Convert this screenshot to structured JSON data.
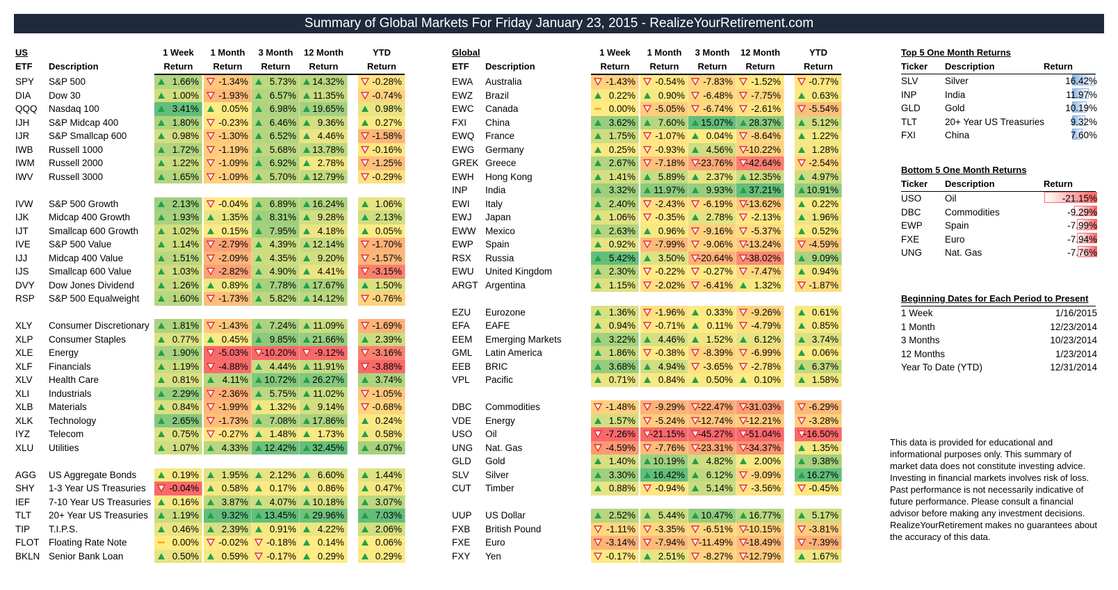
{
  "title": "Summary of Global Markets For Friday January 23, 2015 - RealizeYourRetirement.com",
  "left_table": {
    "region_label": "US",
    "headers": {
      "etf": "ETF",
      "description": "Description",
      "p1_top": "1 Week",
      "p2_top": "1 Month",
      "p3_top": "3 Month",
      "p4_top": "12 Month",
      "p5_top": "YTD",
      "ret": "Return"
    },
    "groups": [
      [
        {
          "etf": "SPY",
          "desc": "S&P 500",
          "values": [
            "1.66%",
            "-1.34%",
            "5.73%",
            "14.32%",
            "-0.28%"
          ]
        },
        {
          "etf": "DIA",
          "desc": "Dow 30",
          "values": [
            "1.00%",
            "-1.93%",
            "6.57%",
            "11.35%",
            "-0.74%"
          ]
        },
        {
          "etf": "QQQ",
          "desc": "Nasdaq 100",
          "values": [
            "3.41%",
            "0.05%",
            "6.98%",
            "19.65%",
            "0.98%"
          ]
        },
        {
          "etf": "IJH",
          "desc": "S&P Midcap 400",
          "values": [
            "1.80%",
            "-0.23%",
            "6.46%",
            "9.36%",
            "0.27%"
          ]
        },
        {
          "etf": "IJR",
          "desc": "S&P Smallcap 600",
          "values": [
            "0.98%",
            "-1.30%",
            "6.52%",
            "4.46%",
            "-1.58%"
          ]
        },
        {
          "etf": "IWB",
          "desc": "Russell 1000",
          "values": [
            "1.72%",
            "-1.19%",
            "5.68%",
            "13.78%",
            "-0.16%"
          ]
        },
        {
          "etf": "IWM",
          "desc": "Russell 2000",
          "values": [
            "1.22%",
            "-1.09%",
            "6.92%",
            "2.78%",
            "-1.25%"
          ]
        },
        {
          "etf": "IWV",
          "desc": "Russell 3000",
          "values": [
            "1.65%",
            "-1.09%",
            "5.70%",
            "12.79%",
            "-0.29%"
          ]
        }
      ],
      [
        {
          "etf": "IVW",
          "desc": "S&P 500 Growth",
          "values": [
            "2.13%",
            "-0.04%",
            "6.89%",
            "16.24%",
            "1.06%"
          ]
        },
        {
          "etf": "IJK",
          "desc": "Midcap 400 Growth",
          "values": [
            "1.93%",
            "1.35%",
            "8.31%",
            "9.28%",
            "2.13%"
          ]
        },
        {
          "etf": "IJT",
          "desc": "Smallcap 600 Growth",
          "values": [
            "1.02%",
            "0.15%",
            "7.95%",
            "4.18%",
            "0.05%"
          ]
        },
        {
          "etf": "IVE",
          "desc": "S&P 500 Value",
          "values": [
            "1.14%",
            "-2.79%",
            "4.39%",
            "12.14%",
            "-1.70%"
          ]
        },
        {
          "etf": "IJJ",
          "desc": "Midcap 400 Value",
          "values": [
            "1.51%",
            "-2.09%",
            "4.35%",
            "9.20%",
            "-1.57%"
          ]
        },
        {
          "etf": "IJS",
          "desc": "Smallcap 600 Value",
          "values": [
            "1.03%",
            "-2.82%",
            "4.90%",
            "4.41%",
            "-3.15%"
          ]
        },
        {
          "etf": "DVY",
          "desc": "Dow Jones Dividend",
          "values": [
            "1.26%",
            "0.89%",
            "7.78%",
            "17.67%",
            "1.50%"
          ]
        },
        {
          "etf": "RSP",
          "desc": "S&P 500 Equalweight",
          "values": [
            "1.60%",
            "-1.73%",
            "5.82%",
            "14.12%",
            "-0.76%"
          ]
        }
      ],
      [
        {
          "etf": "XLY",
          "desc": "Consumer Discretionary",
          "values": [
            "1.81%",
            "-1.43%",
            "7.24%",
            "11.09%",
            "-1.69%"
          ]
        },
        {
          "etf": "XLP",
          "desc": "Consumer Staples",
          "values": [
            "0.77%",
            "0.45%",
            "9.85%",
            "21.66%",
            "2.39%"
          ]
        },
        {
          "etf": "XLE",
          "desc": "Energy",
          "values": [
            "1.90%",
            "-5.03%",
            "-10.20%",
            "-9.12%",
            "-3.16%"
          ]
        },
        {
          "etf": "XLF",
          "desc": "Financials",
          "values": [
            "1.19%",
            "-4.88%",
            "4.44%",
            "11.91%",
            "-3.88%"
          ]
        },
        {
          "etf": "XLV",
          "desc": "Health Care",
          "values": [
            "0.81%",
            "4.11%",
            "10.72%",
            "26.27%",
            "3.74%"
          ]
        },
        {
          "etf": "XLI",
          "desc": "Industrials",
          "values": [
            "2.29%",
            "-2.36%",
            "5.75%",
            "11.02%",
            "-1.05%"
          ]
        },
        {
          "etf": "XLB",
          "desc": "Materials",
          "values": [
            "0.84%",
            "-1.99%",
            "1.32%",
            "9.14%",
            "-0.68%"
          ]
        },
        {
          "etf": "XLK",
          "desc": "Technology",
          "values": [
            "2.65%",
            "-1.73%",
            "7.08%",
            "17.86%",
            "0.24%"
          ]
        },
        {
          "etf": "IYZ",
          "desc": "Telecom",
          "values": [
            "0.75%",
            "-0.27%",
            "1.48%",
            "1.73%",
            "0.58%"
          ]
        },
        {
          "etf": "XLU",
          "desc": "Utilities",
          "values": [
            "1.07%",
            "4.33%",
            "12.42%",
            "32.45%",
            "4.07%"
          ]
        }
      ],
      [
        {
          "etf": "AGG",
          "desc": "US Aggregate Bonds",
          "values": [
            "0.19%",
            "1.95%",
            "2.12%",
            "6.60%",
            "1.44%"
          ]
        },
        {
          "etf": "SHY",
          "desc": "1-3 Year US Treasuries",
          "values": [
            "-0.04%",
            "0.58%",
            "0.17%",
            "0.86%",
            "0.47%"
          ]
        },
        {
          "etf": "IEF",
          "desc": "7-10 Year US Treasuries",
          "values": [
            "0.16%",
            "3.87%",
            "4.07%",
            "10.18%",
            "3.07%"
          ]
        },
        {
          "etf": "TLT",
          "desc": "20+ Year US Treasuries",
          "values": [
            "1.19%",
            "9.32%",
            "13.45%",
            "29.96%",
            "7.03%"
          ]
        },
        {
          "etf": "TIP",
          "desc": "T.I.P.S.",
          "values": [
            "0.46%",
            "2.39%",
            "0.91%",
            "4.22%",
            "2.06%"
          ]
        },
        {
          "etf": "FLOT",
          "desc": "Floating Rate Note",
          "values": [
            "0.00%",
            "-0.02%",
            "-0.18%",
            "0.14%",
            "0.06%"
          ]
        },
        {
          "etf": "BKLN",
          "desc": "Senior Bank Loan",
          "values": [
            "0.50%",
            "0.59%",
            "-0.17%",
            "0.29%",
            "0.29%"
          ]
        }
      ]
    ]
  },
  "right_table": {
    "region_label": "Global",
    "headers": {
      "etf": "ETF",
      "description": "Description",
      "p1_top": "1 Week",
      "p2_top": "1 Month",
      "p3_top": "3 Month",
      "p4_top": "12 Month",
      "p5_top": "YTD",
      "ret": "Return"
    },
    "groups": [
      [
        {
          "etf": "EWA",
          "desc": "Australia",
          "values": [
            "-1.43%",
            "-0.54%",
            "-7.83%",
            "-1.52%",
            "-0.77%"
          ]
        },
        {
          "etf": "EWZ",
          "desc": "Brazil",
          "values": [
            "0.22%",
            "0.90%",
            "-6.48%",
            "-7.75%",
            "0.63%"
          ]
        },
        {
          "etf": "EWC",
          "desc": "Canada",
          "values": [
            "0.00%",
            "-5.05%",
            "-6.74%",
            "-2.61%",
            "-5.54%"
          ]
        },
        {
          "etf": "FXI",
          "desc": "China",
          "values": [
            "3.62%",
            "7.60%",
            "15.07%",
            "28.37%",
            "5.12%"
          ]
        },
        {
          "etf": "EWQ",
          "desc": "France",
          "values": [
            "1.75%",
            "-1.07%",
            "0.04%",
            "-8.64%",
            "1.22%"
          ]
        },
        {
          "etf": "EWG",
          "desc": "Germany",
          "values": [
            "0.25%",
            "-0.93%",
            "4.56%",
            "-10.22%",
            "1.28%"
          ]
        },
        {
          "etf": "GREK",
          "desc": "Greece",
          "values": [
            "2.67%",
            "-7.18%",
            "-23.76%",
            "-42.64%",
            "-2.54%"
          ]
        },
        {
          "etf": "EWH",
          "desc": "Hong Kong",
          "values": [
            "1.41%",
            "5.89%",
            "2.37%",
            "12.35%",
            "4.97%"
          ]
        },
        {
          "etf": "INP",
          "desc": "India",
          "values": [
            "3.32%",
            "11.97%",
            "9.93%",
            "37.21%",
            "10.91%"
          ]
        },
        {
          "etf": "EWI",
          "desc": "Italy",
          "values": [
            "2.40%",
            "-2.43%",
            "-6.19%",
            "-13.62%",
            "0.22%"
          ]
        },
        {
          "etf": "EWJ",
          "desc": "Japan",
          "values": [
            "1.06%",
            "-0.35%",
            "2.78%",
            "-2.13%",
            "1.96%"
          ]
        },
        {
          "etf": "EWW",
          "desc": "Mexico",
          "values": [
            "2.63%",
            "0.96%",
            "-9.16%",
            "-5.37%",
            "0.52%"
          ]
        },
        {
          "etf": "EWP",
          "desc": "Spain",
          "values": [
            "0.92%",
            "-7.99%",
            "-9.06%",
            "-13.24%",
            "-4.59%"
          ]
        },
        {
          "etf": "RSX",
          "desc": "Russia",
          "values": [
            "5.42%",
            "3.50%",
            "-20.64%",
            "-38.02%",
            "9.09%"
          ]
        },
        {
          "etf": "EWU",
          "desc": "United Kingdom",
          "values": [
            "2.30%",
            "-0.22%",
            "-0.27%",
            "-7.47%",
            "0.94%"
          ]
        },
        {
          "etf": "ARGT",
          "desc": "Argentina",
          "values": [
            "1.15%",
            "-2.02%",
            "-6.41%",
            "1.32%",
            "-1.87%"
          ]
        }
      ],
      [
        {
          "etf": "EZU",
          "desc": "Eurozone",
          "values": [
            "1.36%",
            "-1.96%",
            "0.33%",
            "-9.26%",
            "0.61%"
          ]
        },
        {
          "etf": "EFA",
          "desc": "EAFE",
          "values": [
            "0.94%",
            "-0.71%",
            "0.11%",
            "-4.79%",
            "0.85%"
          ]
        },
        {
          "etf": "EEM",
          "desc": "Emerging Markets",
          "values": [
            "3.22%",
            "4.46%",
            "1.52%",
            "6.12%",
            "3.74%"
          ]
        },
        {
          "etf": "GML",
          "desc": "Latin America",
          "values": [
            "1.86%",
            "-0.38%",
            "-8.39%",
            "-6.99%",
            "0.06%"
          ]
        },
        {
          "etf": "EEB",
          "desc": "BRIC",
          "values": [
            "3.68%",
            "4.94%",
            "-3.65%",
            "-2.78%",
            "6.37%"
          ]
        },
        {
          "etf": "VPL",
          "desc": "Pacific",
          "values": [
            "0.71%",
            "0.84%",
            "0.50%",
            "0.10%",
            "1.58%"
          ]
        }
      ],
      [
        {
          "etf": "DBC",
          "desc": "Commodities",
          "values": [
            "-1.48%",
            "-9.29%",
            "-22.47%",
            "-31.03%",
            "-6.29%"
          ]
        },
        {
          "etf": "VDE",
          "desc": "Energy",
          "values": [
            "1.57%",
            "-5.24%",
            "-12.74%",
            "-12.21%",
            "-3.28%"
          ]
        },
        {
          "etf": "USO",
          "desc": "Oil",
          "values": [
            "-7.26%",
            "-21.15%",
            "-45.27%",
            "-51.04%",
            "-16.50%"
          ]
        },
        {
          "etf": "UNG",
          "desc": "Nat. Gas",
          "values": [
            "-4.59%",
            "-7.76%",
            "-23.31%",
            "-34.37%",
            "1.35%"
          ]
        },
        {
          "etf": "GLD",
          "desc": "Gold",
          "values": [
            "1.40%",
            "10.19%",
            "4.82%",
            "2.00%",
            "9.38%"
          ]
        },
        {
          "etf": "SLV",
          "desc": "Silver",
          "values": [
            "3.30%",
            "16.42%",
            "6.12%",
            "-9.09%",
            "16.27%"
          ]
        },
        {
          "etf": "CUT",
          "desc": "Timber",
          "values": [
            "0.88%",
            "-0.94%",
            "5.14%",
            "-3.56%",
            "-0.45%"
          ]
        }
      ],
      [
        {
          "etf": "UUP",
          "desc": "US Dollar",
          "values": [
            "2.52%",
            "5.44%",
            "10.47%",
            "16.77%",
            "5.17%"
          ]
        },
        {
          "etf": "FXB",
          "desc": "British Pound",
          "values": [
            "-1.11%",
            "-3.35%",
            "-6.51%",
            "-10.15%",
            "-3.81%"
          ]
        },
        {
          "etf": "FXE",
          "desc": "Euro",
          "values": [
            "-3.14%",
            "-7.94%",
            "-11.49%",
            "-18.49%",
            "-7.39%"
          ]
        },
        {
          "etf": "FXY",
          "desc": "Yen",
          "values": [
            "-0.17%",
            "2.51%",
            "-8.27%",
            "-12.79%",
            "1.67%"
          ]
        }
      ]
    ]
  },
  "top5": {
    "title": "Top 5 One Month Returns",
    "headers": {
      "ticker": "Ticker",
      "description": "Description",
      "ret": "Return"
    },
    "rows": [
      {
        "ticker": "SLV",
        "desc": "Silver",
        "value": "16.42%",
        "num": 16.42
      },
      {
        "ticker": "INP",
        "desc": "India",
        "value": "11.97%",
        "num": 11.97
      },
      {
        "ticker": "GLD",
        "desc": "Gold",
        "value": "10.19%",
        "num": 10.19
      },
      {
        "ticker": "TLT",
        "desc": "20+ Year US Treasuries",
        "value": "9.32%",
        "num": 9.32
      },
      {
        "ticker": "FXI",
        "desc": "China",
        "value": "7.60%",
        "num": 7.6
      }
    ]
  },
  "bottom5": {
    "title": "Bottom 5 One Month Returns",
    "headers": {
      "ticker": "Ticker",
      "description": "Description",
      "ret": "Return"
    },
    "rows": [
      {
        "ticker": "USO",
        "desc": "Oil",
        "value": "-21.15%",
        "num": -21.15
      },
      {
        "ticker": "DBC",
        "desc": "Commodities",
        "value": "-9.29%",
        "num": -9.29
      },
      {
        "ticker": "EWP",
        "desc": "Spain",
        "value": "-7.99%",
        "num": -7.99
      },
      {
        "ticker": "FXE",
        "desc": "Euro",
        "value": "-7.94%",
        "num": -7.94
      },
      {
        "ticker": "UNG",
        "desc": "Nat. Gas",
        "value": "-7.76%",
        "num": -7.76
      }
    ]
  },
  "dates": {
    "title": "Beginning Dates for Each Period to Present",
    "rows": [
      {
        "label": "1 Week",
        "date": "1/16/2015"
      },
      {
        "label": "1 Month",
        "date": "12/23/2014"
      },
      {
        "label": "3 Months",
        "date": "10/23/2014"
      },
      {
        "label": "12 Months",
        "date": "1/23/2014"
      },
      {
        "label": "Year To Date (YTD)",
        "date": "12/31/2014"
      }
    ]
  },
  "disclaimer": "This data is provided for educational and informational purposes only. This summary of market data does not constitute investing advice. Investing in financial markets involves risk of loss.  Past performance is not necessarily  indicative of future performance. Please consult a financial advisor before making any investment decisions. RealizeYourRetirement makes no guarantees about the accuracy of this data.",
  "colors": {
    "banner": "#1f2a3c",
    "up": "#63be7b",
    "neutral": "#ffeb84",
    "down": "#f8696b",
    "top_bar": "#8db4e2",
    "bottom_bar": "#f8696b"
  }
}
